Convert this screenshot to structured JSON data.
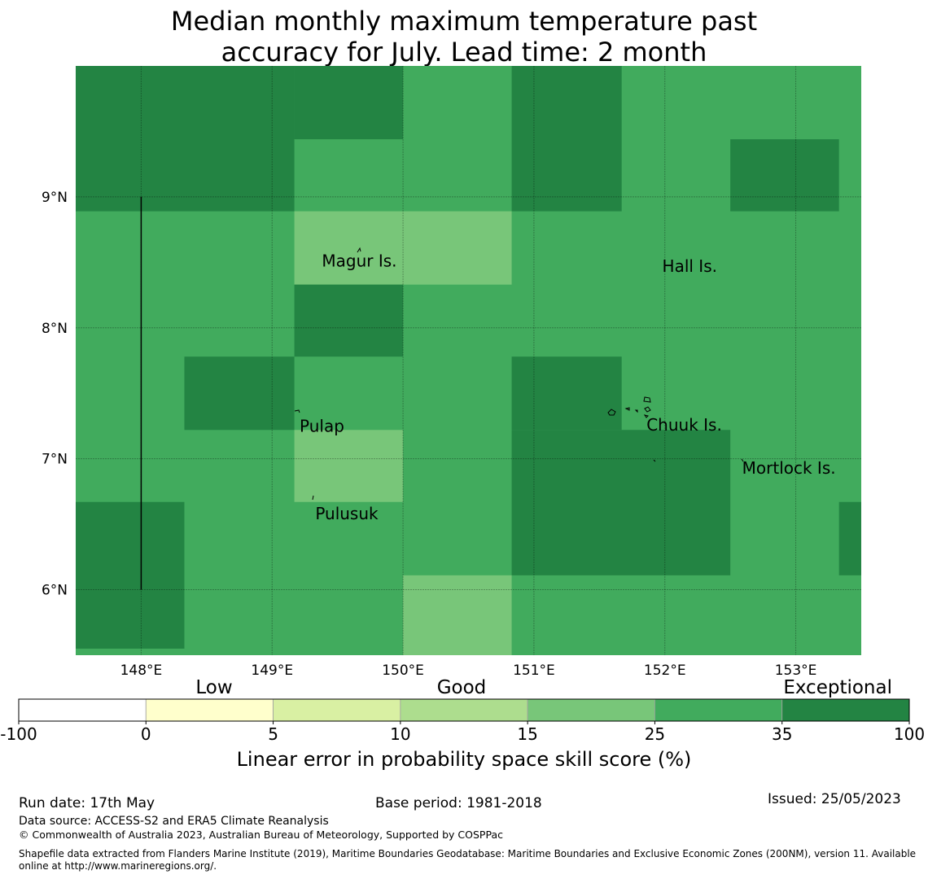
{
  "title": {
    "line1": "Median monthly maximum temperature past",
    "line2": "accuracy for July. Lead time: 2 month"
  },
  "map": {
    "lon_range": [
      147.5,
      153.5
    ],
    "lat_range": [
      5.5,
      10.0
    ],
    "lon_ticks": [
      {
        "value": 148,
        "label": "148°E"
      },
      {
        "value": 149,
        "label": "149°E"
      },
      {
        "value": 150,
        "label": "150°E"
      },
      {
        "value": 151,
        "label": "151°E"
      },
      {
        "value": 152,
        "label": "152°E"
      },
      {
        "value": 153,
        "label": "153°E"
      }
    ],
    "lat_ticks": [
      {
        "value": 9,
        "label": "9°N"
      },
      {
        "value": 8,
        "label": "8°N"
      },
      {
        "value": 7,
        "label": "7°N"
      },
      {
        "value": 6,
        "label": "6°N"
      }
    ],
    "grid": true,
    "base_color": "#41ab5d",
    "cells": [
      {
        "lon": [
          147.5,
          149.17
        ],
        "lat": [
          8.89,
          10.0
        ],
        "color": "#238443"
      },
      {
        "lon": [
          149.17,
          150.0
        ],
        "lat": [
          9.44,
          10.0
        ],
        "color": "#238443"
      },
      {
        "lon": [
          150.83,
          151.67
        ],
        "lat": [
          8.89,
          10.0
        ],
        "color": "#238443"
      },
      {
        "lon": [
          152.5,
          153.33
        ],
        "lat": [
          8.89,
          9.44
        ],
        "color": "#238443"
      },
      {
        "lon": [
          149.17,
          150.83
        ],
        "lat": [
          8.33,
          8.89
        ],
        "color": "#78c679"
      },
      {
        "lon": [
          149.17,
          150.0
        ],
        "lat": [
          7.78,
          8.33
        ],
        "color": "#238443"
      },
      {
        "lon": [
          148.33,
          149.17
        ],
        "lat": [
          7.22,
          7.78
        ],
        "color": "#238443"
      },
      {
        "lon": [
          150.83,
          151.67
        ],
        "lat": [
          7.22,
          7.78
        ],
        "color": "#238443"
      },
      {
        "lon": [
          150.83,
          152.5
        ],
        "lat": [
          6.11,
          7.22
        ],
        "color": "#238443"
      },
      {
        "lon": [
          149.17,
          150.0
        ],
        "lat": [
          6.67,
          7.22
        ],
        "color": "#78c679"
      },
      {
        "lon": [
          147.5,
          148.33
        ],
        "lat": [
          5.55,
          6.67
        ],
        "color": "#238443"
      },
      {
        "lon": [
          153.33,
          153.5
        ],
        "lat": [
          6.11,
          6.67
        ],
        "color": "#238443"
      },
      {
        "lon": [
          150.0,
          150.83
        ],
        "lat": [
          5.5,
          6.11
        ],
        "color": "#78c679"
      }
    ],
    "vertical_line": {
      "lon": 148.0,
      "lat": [
        6.0,
        9.0
      ]
    },
    "islands": [
      {
        "name": "Magur Is.",
        "lon": 149.38,
        "lat": 8.51
      },
      {
        "name": "Hall Is.",
        "lon": 151.98,
        "lat": 8.47
      },
      {
        "name": "Pulap",
        "lon": 149.21,
        "lat": 7.25
      },
      {
        "name": "Chuuk Is.",
        "lon": 151.86,
        "lat": 7.26
      },
      {
        "name": "Mortlock Is.",
        "lon": 152.59,
        "lat": 6.93
      },
      {
        "name": "Pulusuk",
        "lon": 149.33,
        "lat": 6.58
      }
    ]
  },
  "colorbar": {
    "category_labels": [
      "Low",
      "Good",
      "Exceptional"
    ],
    "bins": [
      {
        "from": "-100",
        "to": "0",
        "color": "#ffffff"
      },
      {
        "from": "0",
        "to": "5",
        "color": "#ffffcc"
      },
      {
        "from": "5",
        "to": "10",
        "color": "#d9f0a3"
      },
      {
        "from": "10",
        "to": "15",
        "color": "#addd8e"
      },
      {
        "from": "15",
        "to": "25",
        "color": "#78c679"
      },
      {
        "from": "25",
        "to": "35",
        "color": "#41ab5d"
      },
      {
        "from": "35",
        "to": "100",
        "color": "#238443"
      }
    ],
    "tick_labels": [
      "-100",
      "0",
      "5",
      "10",
      "15",
      "25",
      "35",
      "100"
    ],
    "label": "Linear error in probability space skill score (%)"
  },
  "footer": {
    "run_date": "Run date: 17th May",
    "base_period": "Base period: 1981-2018",
    "issued": "Issued: 25/05/2023",
    "data_source": "Data source: ACCESS-S2 and ERA5 Climate Reanalysis",
    "copyright": "© Commonwealth of Australia 2023, Australian Bureau of Meteorology, Supported by COSPPac",
    "shapefile_line1": "Shapefile data extracted from Flanders Marine Institute (2019), Maritime Boundaries Geodatabase: Maritime Boundaries and Exclusive Economic Zones (200NM), version 11. Available",
    "shapefile_line2": "online at http://www.marineregions.org/."
  }
}
